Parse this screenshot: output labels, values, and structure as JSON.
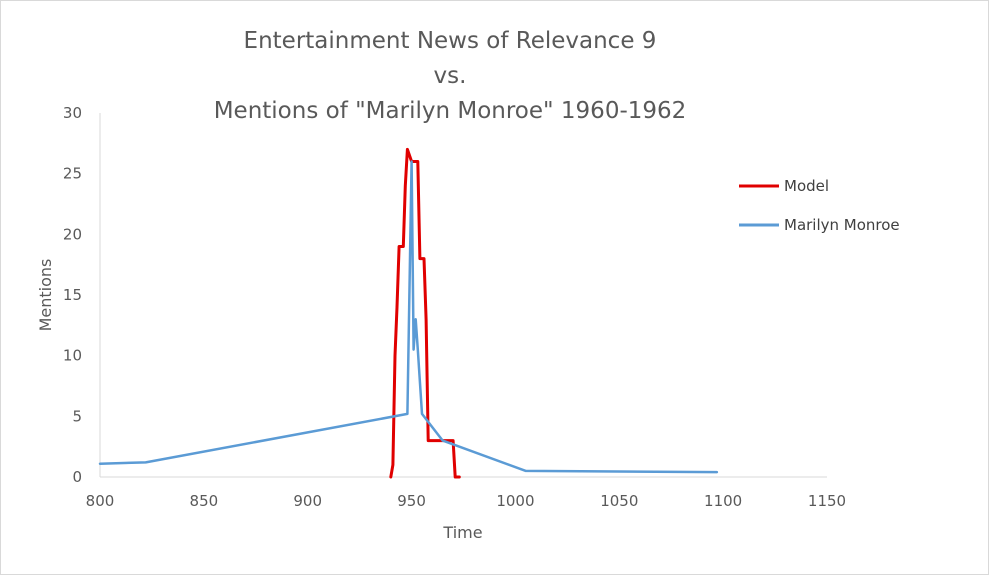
{
  "chart_data": {
    "type": "line",
    "title_lines": [
      "Entertainment News of Relevance 9",
      "vs.",
      "Mentions of \"Marilyn Monroe\" 1960-1962"
    ],
    "xlabel": "Time",
    "ylabel": "Mentions",
    "xlim": [
      800,
      1150
    ],
    "ylim": [
      0,
      30
    ],
    "x_ticks": [
      "800",
      "850",
      "900",
      "950",
      "1000",
      "1050",
      "1100",
      "1150"
    ],
    "y_ticks": [
      "0",
      "5",
      "10",
      "15",
      "20",
      "25",
      "30"
    ],
    "grid": false,
    "legend_position": "right",
    "series": [
      {
        "name": "Model",
        "color": "#e00000",
        "points": [
          [
            940,
            0
          ],
          [
            941,
            1
          ],
          [
            942,
            10
          ],
          [
            943,
            14
          ],
          [
            944,
            19
          ],
          [
            946,
            19
          ],
          [
            947,
            24
          ],
          [
            948,
            27
          ],
          [
            950,
            26
          ],
          [
            951,
            26
          ],
          [
            952,
            26
          ],
          [
            953,
            26
          ],
          [
            954,
            18
          ],
          [
            956,
            18
          ],
          [
            957,
            13
          ],
          [
            958,
            3
          ],
          [
            960,
            3
          ],
          [
            962,
            3
          ],
          [
            964,
            3
          ],
          [
            967,
            3
          ],
          [
            969,
            3
          ],
          [
            970,
            3
          ],
          [
            971,
            0
          ],
          [
            973,
            0
          ]
        ]
      },
      {
        "name": "Marilyn Monroe",
        "color": "#5b9bd5",
        "points": [
          [
            800,
            1.1
          ],
          [
            822,
            1.2
          ],
          [
            948,
            5.2
          ],
          [
            950,
            26
          ],
          [
            951,
            10.5
          ],
          [
            952,
            13
          ],
          [
            953,
            10.5
          ],
          [
            955,
            5.2
          ],
          [
            965,
            3
          ],
          [
            1005,
            0.5
          ],
          [
            1097,
            0.4
          ]
        ]
      }
    ]
  }
}
